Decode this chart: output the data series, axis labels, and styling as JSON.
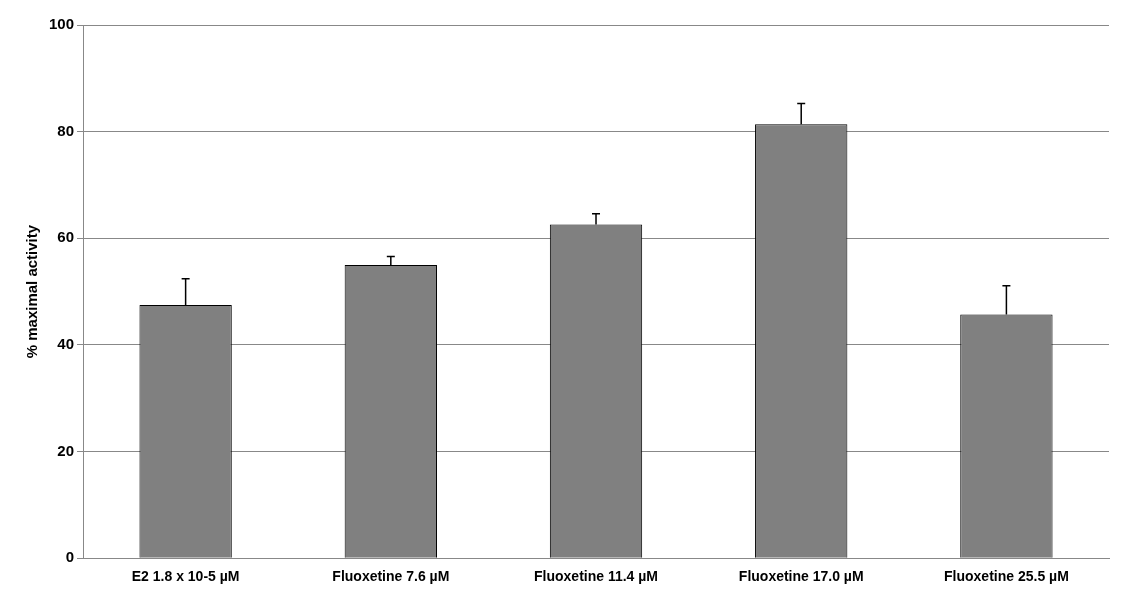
{
  "chart_data": {
    "type": "bar",
    "ylabel": "% maximal activity",
    "categories": [
      "E2 1.8 x 10-5 µM",
      "Fluoxetine 7.6 µM",
      "Fluoxetine 11.4 µM",
      "Fluoxetine 17.0 µM",
      "Fluoxetine 25.5 µM"
    ],
    "values": [
      47.5,
      55,
      62.6,
      81.4,
      45.7
    ],
    "errors": [
      [
        47.5,
        52.4
      ],
      [
        55,
        56.6
      ],
      [
        62.6,
        64.6
      ],
      [
        81.4,
        85.3
      ],
      [
        45.7,
        51.1
      ]
    ],
    "color": "#808080",
    "ylim": [
      0,
      100
    ],
    "yticks": [
      0,
      20,
      40,
      60,
      80,
      100
    ],
    "grid": "y",
    "legend": false
  }
}
